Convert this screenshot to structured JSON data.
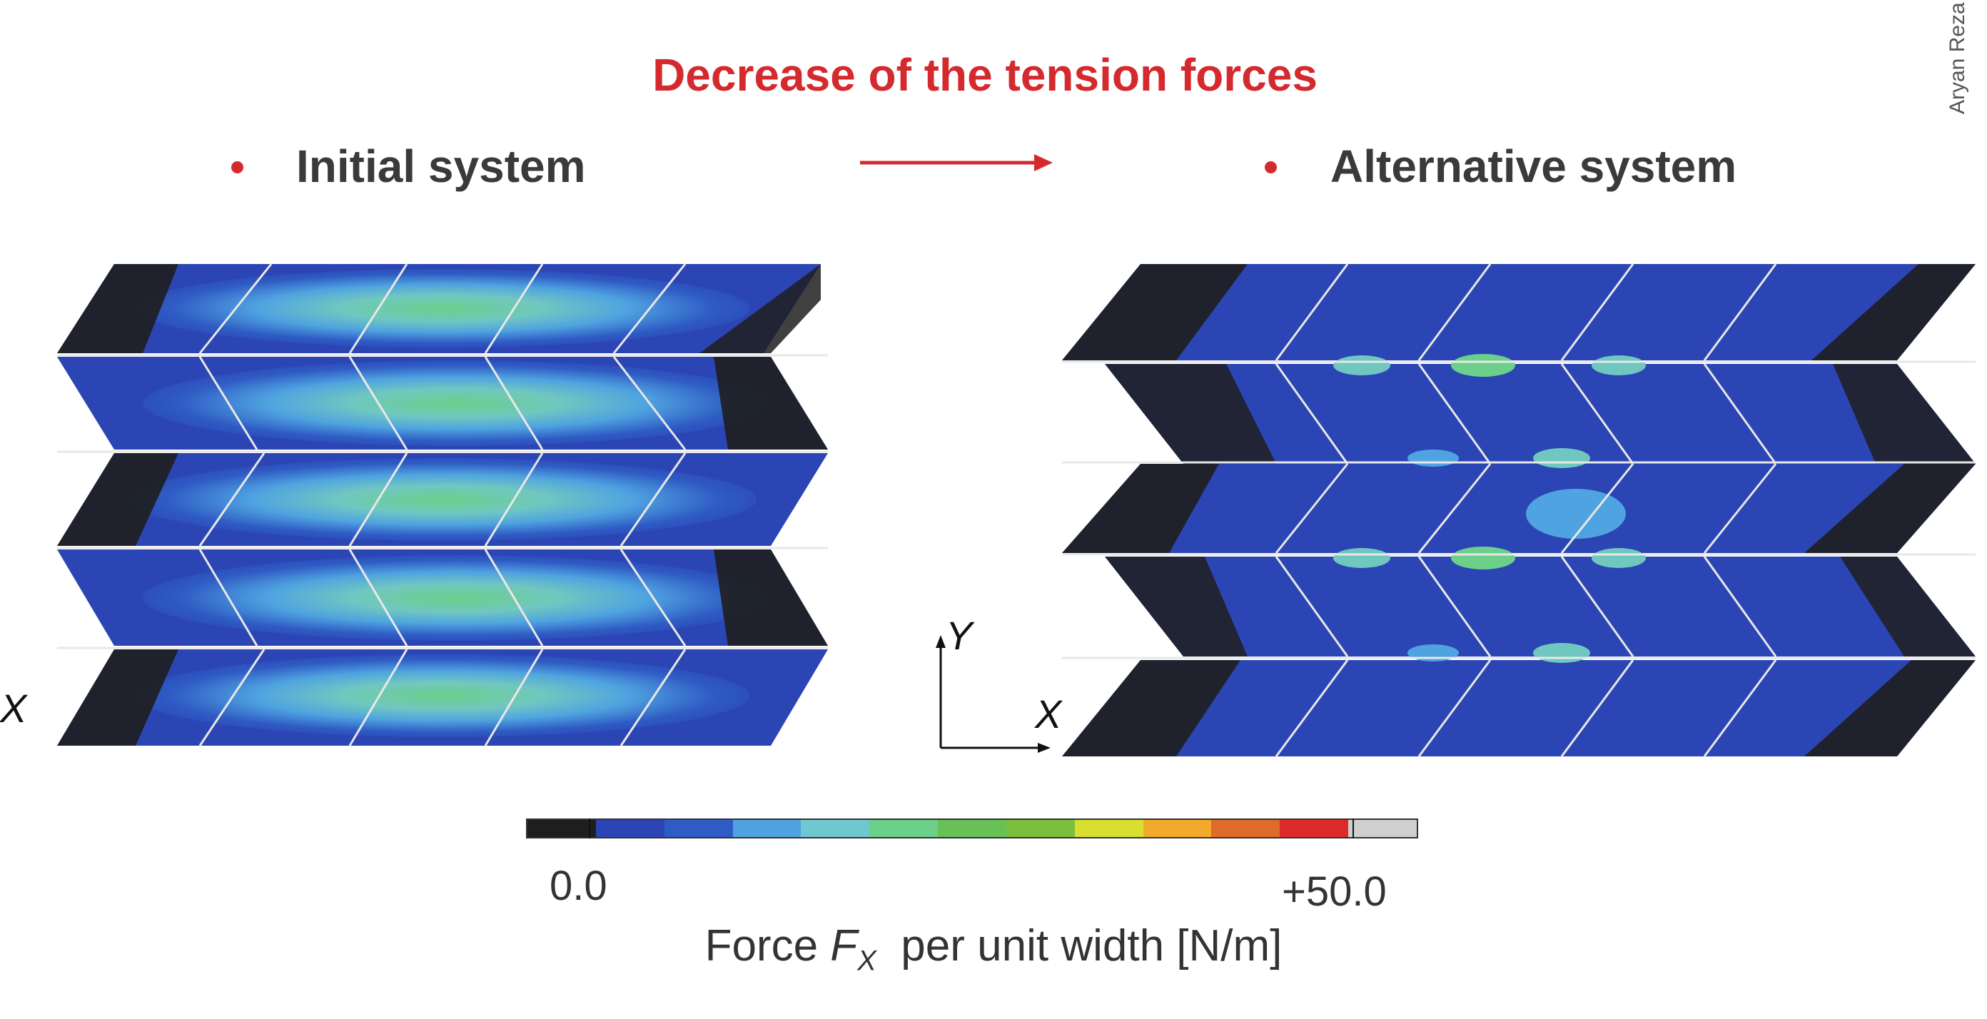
{
  "title": "Decrease of the tension forces",
  "author": "Aryan Reza",
  "left_panel": {
    "label": "Initial system"
  },
  "right_panel": {
    "label": "Alternative system"
  },
  "axes": {
    "x": "X",
    "y": "Y"
  },
  "colorbar": {
    "min_label": "0.0",
    "max_label": "+50.0",
    "caption_prefix": "Force ",
    "caption_symbol": "F",
    "caption_sub": "X",
    "caption_suffix": "  per unit width [N/m]",
    "colors": [
      "#1e1e1e",
      "#2b45b4",
      "#2f5cc4",
      "#4fa3e0",
      "#70c7d0",
      "#6ccf8a",
      "#68c157",
      "#7cbf3c",
      "#d8df30",
      "#f2aa2a",
      "#e06a2a",
      "#dc2a2a",
      "#cfcfcf"
    ]
  },
  "colors": {
    "accent": "#d42a2e",
    "heading": "#3a3a3a"
  }
}
